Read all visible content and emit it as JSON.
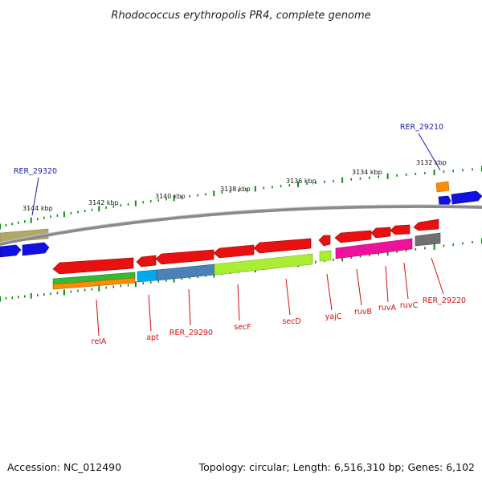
{
  "title": "Rhodococcus erythropolis PR4, complete genome",
  "footer": {
    "accession": "Accession: NC_012490",
    "summary": "Topology: circular; Length: 6,516,310 bp; Genes: 6,102"
  },
  "scale_labels": [
    "3144 kbp",
    "3142 kbp",
    "3140 kbp",
    "3138 kbp",
    "3136 kbp",
    "3134 kbp",
    "3132 kbp"
  ],
  "gene_labels": {
    "relA": "relA",
    "apt": "apt",
    "RER_29290": "RER_29290",
    "secF": "secF",
    "secD": "secD",
    "yajC": "yajC",
    "ruvB": "ruvB",
    "ruvA": "ruvA",
    "ruvC": "ruvC",
    "RER_29220": "RER_29220",
    "RER_29320": "RER_29320",
    "RER_29210": "RER_29210"
  },
  "colors": {
    "cds": "#e81010",
    "forward_cds": "#1010e0",
    "backbone": "#8a8a8a",
    "tick": "#118811",
    "red_label": "#cc1111",
    "blue_label": "#1a1aaa",
    "green_track": "#33bb33",
    "orange_track": "#ff8c00",
    "cyan_track": "#00aaee",
    "steelblue_track": "#4a82b8",
    "lime_track": "#aaee33",
    "magenta_track": "#ee1199",
    "gray_track": "#707070",
    "olive_track": "#b0a868"
  }
}
